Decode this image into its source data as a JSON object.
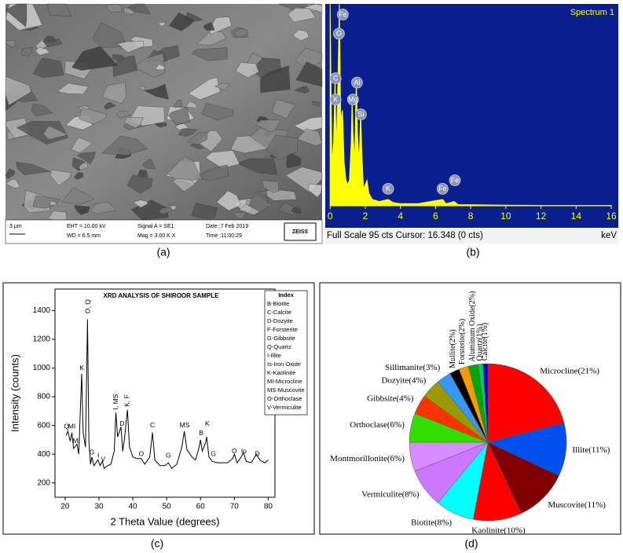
{
  "sem_image": {
    "scale_bar": "3 µm",
    "eht": "EHT = 10.00 kV",
    "wd": "WD = 6.5 mm",
    "signal": "Signal A = SE1",
    "mag": "Mag = 3.00 K X",
    "date": "Date :7 Feb 2019",
    "time": "Time :11:00:29",
    "brand": "ZEISS"
  },
  "captions": [
    "(a)",
    "(b)",
    "(c)",
    "(d)"
  ],
  "chart_data": [
    {
      "type": "area",
      "title": "Spectrum 1",
      "xlabel": "keV",
      "status": "Full Scale 95 cts Cursor: 16.348 (0 cts)",
      "color": "#ffff00",
      "background": "#0a1f8f",
      "x": [
        0,
        0.1,
        0.2,
        0.28,
        0.35,
        0.45,
        0.52,
        0.6,
        0.7,
        0.8,
        0.9,
        1.0,
        1.1,
        1.2,
        1.25,
        1.3,
        1.4,
        1.45,
        1.49,
        1.55,
        1.65,
        1.74,
        1.8,
        1.9,
        2.0,
        2.1,
        2.2,
        2.4,
        2.8,
        3.3,
        3.6,
        4,
        5,
        6.4,
        6.6,
        7.06,
        7.3,
        8,
        10,
        12,
        14,
        16
      ],
      "values": [
        95,
        20,
        30,
        60,
        25,
        60,
        95,
        40,
        45,
        20,
        12,
        10,
        12,
        30,
        50,
        35,
        20,
        45,
        60,
        35,
        20,
        45,
        25,
        8,
        10,
        12,
        6,
        3,
        2,
        3,
        1.5,
        1,
        1,
        3,
        1,
        2,
        0.5,
        0.5,
        0.3,
        0.2,
        0.2,
        0.2
      ],
      "xlim": [
        -0.1,
        16.4
      ],
      "ylim": [
        0,
        95
      ],
      "xticks": [
        0,
        2,
        4,
        6,
        8,
        10,
        12,
        14,
        16
      ],
      "annotations": [
        {
          "text": "Fe",
          "x": 0.72,
          "y": 90
        },
        {
          "text": "O",
          "x": 0.5,
          "y": 81
        },
        {
          "text": "C",
          "x": 0.31,
          "y": 60
        },
        {
          "text": "K",
          "x": 0.31,
          "y": 50
        },
        {
          "text": "Al",
          "x": 1.53,
          "y": 58
        },
        {
          "text": "Mg",
          "x": 1.3,
          "y": 50
        },
        {
          "text": "Si",
          "x": 1.75,
          "y": 43
        },
        {
          "text": "K",
          "x": 3.3,
          "y": 8
        },
        {
          "text": "Fe",
          "x": 6.4,
          "y": 8
        },
        {
          "text": "Fe",
          "x": 7.1,
          "y": 12
        }
      ]
    },
    {
      "type": "line",
      "title": "XRD ANALYSIS OF SHIROOR SAMPLE",
      "xlabel": "2 Theta Value (degrees)",
      "ylabel": "Intensity (counts)",
      "color": "#000000",
      "x": [
        20.3,
        20.8,
        21.5,
        22.0,
        22.5,
        23.5,
        24,
        24.9,
        25.3,
        26,
        26.6,
        27,
        27.5,
        27.9,
        28.5,
        29.7,
        30.3,
        31,
        31.5,
        32.5,
        33.5,
        34.5,
        35,
        35.5,
        36.5,
        37,
        37.5,
        38.4,
        39,
        40,
        41,
        42.5,
        43.5,
        45,
        45.8,
        46.5,
        48,
        49.5,
        50.5,
        51.5,
        53,
        54.5,
        55.2,
        56,
        57.5,
        58.5,
        59.5,
        60,
        60.5,
        61.5,
        61.8,
        62.5,
        63.5,
        65,
        66.5,
        68,
        69.5,
        70,
        70.8,
        72,
        72.7,
        73.5,
        75,
        76.5,
        77.5,
        79,
        80
      ],
      "values": [
        530,
        560,
        490,
        550,
        440,
        470,
        400,
        960,
        550,
        450,
        1340,
        500,
        330,
        380,
        320,
        360,
        320,
        350,
        300,
        320,
        330,
        420,
        690,
        520,
        590,
        420,
        500,
        710,
        450,
        380,
        370,
        370,
        330,
        380,
        550,
        360,
        320,
        320,
        340,
        300,
        330,
        450,
        560,
        430,
        380,
        360,
        440,
        500,
        420,
        480,
        520,
        380,
        350,
        340,
        340,
        340,
        370,
        400,
        340,
        380,
        410,
        350,
        340,
        400,
        360,
        340,
        360
      ],
      "xlim": [
        17,
        82
      ],
      "ylim": [
        100,
        1550
      ],
      "xticks": [
        20,
        30,
        40,
        50,
        60,
        70,
        80
      ],
      "yticks": [
        200,
        400,
        600,
        800,
        1000,
        1200,
        1400
      ],
      "legend_title": "Index",
      "legend_items": [
        "B-Biotite",
        "C-Calcite",
        "D-Dozyite",
        "F-Forsterite",
        "G-Gibbsite",
        "Q-Quartz",
        "I-Illite",
        "Is-Iron Oxide",
        "K-Kaolinite",
        "MI-Microcline",
        "MS-Muscovite",
        "O-Orthoclase",
        "V-Vermiculite"
      ],
      "annotations": [
        {
          "text": "Q",
          "x": 20.4,
          "y": 590
        },
        {
          "text": "MI",
          "x": 22,
          "y": 590
        },
        {
          "text": "MI",
          "x": 23.3,
          "y": 490
        },
        {
          "text": "K",
          "x": 24.9,
          "y": 1000
        },
        {
          "text": "O, Q",
          "x": 26.8,
          "y": 1380,
          "vertical": true
        },
        {
          "text": "G",
          "x": 27.9,
          "y": 410
        },
        {
          "text": "I",
          "x": 29.8,
          "y": 390
        },
        {
          "text": "V",
          "x": 31.2,
          "y": 360
        },
        {
          "text": "I, MS",
          "x": 35,
          "y": 710,
          "vertical": true
        },
        {
          "text": "D",
          "x": 36.8,
          "y": 610
        },
        {
          "text": "K, F",
          "x": 38.4,
          "y": 730,
          "vertical": true
        },
        {
          "text": "O",
          "x": 42.5,
          "y": 400
        },
        {
          "text": "C",
          "x": 45.8,
          "y": 600
        },
        {
          "text": "G",
          "x": 50.5,
          "y": 390
        },
        {
          "text": "MS",
          "x": 55.3,
          "y": 600
        },
        {
          "text": "B",
          "x": 60.2,
          "y": 545
        },
        {
          "text": "K",
          "x": 62,
          "y": 610
        },
        {
          "text": "G",
          "x": 63.8,
          "y": 400
        },
        {
          "text": "O",
          "x": 70,
          "y": 420
        },
        {
          "text": "Io",
          "x": 72.8,
          "y": 420
        },
        {
          "text": "D",
          "x": 76.8,
          "y": 400
        }
      ]
    },
    {
      "type": "pie",
      "values": [
        21,
        11,
        11,
        10,
        8,
        8,
        6,
        6,
        4,
        4,
        3,
        2,
        2,
        2,
        1,
        1
      ],
      "value_labels": [
        "Microcline(21%)",
        "Illite(11%)",
        "Muscovite(11%)",
        "Kaolinite(10%)",
        "Biotite(8%)",
        "Vermiculite(8%)",
        "Montmorillonite(6%)",
        "Orthoclase(6%)",
        "Gibbsite(4%)",
        "Dozyite(4%)",
        "Sillimanite(3%)",
        "Mullite(2%)",
        "Forsterite(2%)",
        "Aluminum Oxide(2%)",
        "Quartz(1%)",
        "Calcite(1%)"
      ],
      "colors": [
        "#ff0000",
        "#0050f0",
        "#800000",
        "#ff0000",
        "#00ffff",
        "#cc77ff",
        "#d98cff",
        "#33dd00",
        "#ff3300",
        "#999900",
        "#3399ff",
        "#000000",
        "#ff9900",
        "#00aa00",
        "#00cc66",
        "#0000cc"
      ]
    }
  ]
}
